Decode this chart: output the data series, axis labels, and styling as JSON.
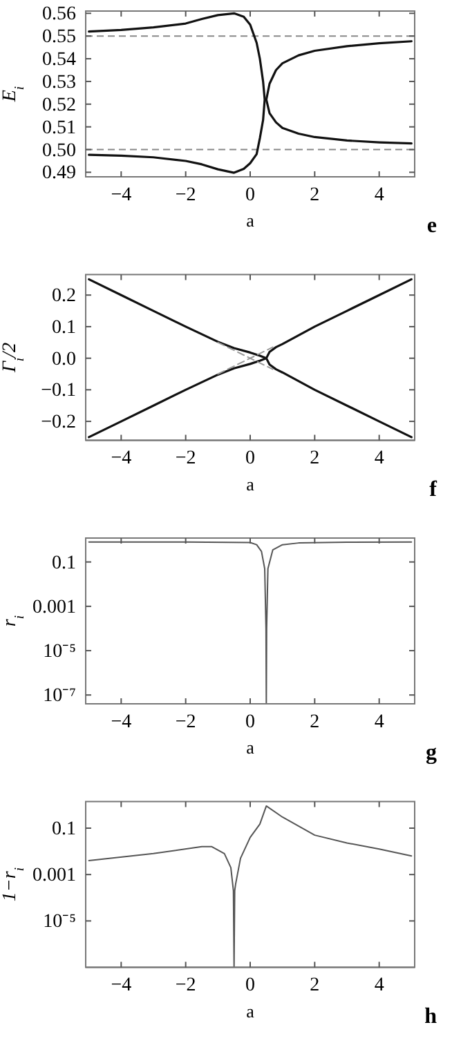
{
  "chart_data": [
    {
      "type": "line",
      "xlabel": "a",
      "ylabel": "E$_{i}$",
      "annotations": [
        "e"
      ],
      "xlim": [
        -5.1,
        5.1
      ],
      "ylim": [
        0.488,
        0.561
      ],
      "xticks": [
        -4,
        -2,
        0,
        2,
        4
      ],
      "yticks": [
        0.49,
        {
          "value": 0.5,
          "label": "0.50"
        },
        0.51,
        0.52,
        0.53,
        0.54,
        0.55,
        0.56
      ],
      "ref_lines": [
        {
          "axis": "y",
          "value": 0.55,
          "color": "#888888",
          "line_style": "dashed"
        },
        {
          "axis": "y",
          "value": 0.5,
          "color": "#888888",
          "line_style": "dashed"
        }
      ],
      "series": [
        {
          "color": "#111111",
          "x": [
            -5,
            -4,
            -3,
            -2,
            -1.5,
            -1,
            -0.5,
            -0.2,
            0,
            0.2,
            0.3,
            0.4,
            0.45,
            0.4,
            0.3,
            0.2,
            0,
            -0.2,
            -0.5,
            -1,
            -1.5,
            -2,
            -3,
            -4,
            -5
          ],
          "values": [
            0.552,
            0.5527,
            0.5538,
            0.5555,
            0.5575,
            0.5592,
            0.56,
            0.5585,
            0.555,
            0.547,
            0.54,
            0.53,
            0.522,
            0.513,
            0.505,
            0.498,
            0.494,
            0.4915,
            0.4898,
            0.4913,
            0.4935,
            0.495,
            0.4966,
            0.4973,
            0.4977
          ]
        },
        {
          "color": "#111111",
          "x": [
            5,
            4,
            3,
            2,
            1.5,
            1,
            0.8,
            0.6,
            0.5,
            0.6,
            0.8,
            1,
            1.5,
            2,
            3,
            4,
            5
          ],
          "values": [
            0.5477,
            0.5468,
            0.5455,
            0.5435,
            0.5415,
            0.538,
            0.535,
            0.529,
            0.522,
            0.516,
            0.512,
            0.5095,
            0.507,
            0.5055,
            0.504,
            0.5032,
            0.5027
          ]
        }
      ]
    },
    {
      "type": "line",
      "xlabel": "a",
      "ylabel": "Γ$_{i}$/2",
      "annotations": [
        "f"
      ],
      "xlim": [
        -5.1,
        5.1
      ],
      "ylim": [
        -0.26,
        0.265
      ],
      "xticks": [
        -4,
        -2,
        0,
        2,
        4
      ],
      "yticks": [
        -0.2,
        -0.1,
        {
          "value": 0,
          "label": "0.0"
        },
        0.1,
        0.2
      ],
      "series": [
        {
          "color": "#111111",
          "x": [
            -5,
            -4,
            -3,
            -2,
            -1,
            -0.5,
            0,
            0.3,
            0.45,
            0.5,
            0.6,
            0.8,
            1,
            2,
            3,
            4,
            5
          ],
          "values": [
            0.25,
            0.2,
            0.15,
            0.1,
            0.052,
            0.032,
            0.018,
            0.008,
            0.002,
            0,
            -0.02,
            -0.035,
            -0.045,
            -0.1,
            -0.15,
            -0.2,
            -0.25
          ]
        },
        {
          "color": "#111111",
          "x": [
            -5,
            -4,
            -3,
            -2,
            -1,
            -0.5,
            0,
            0.3,
            0.45,
            0.5,
            0.6,
            0.8,
            1,
            2,
            3,
            4,
            5
          ],
          "values": [
            -0.25,
            -0.2,
            -0.15,
            -0.1,
            -0.052,
            -0.032,
            -0.018,
            -0.008,
            -0.002,
            0,
            0.02,
            0.035,
            0.045,
            0.1,
            0.15,
            0.2,
            0.25
          ]
        },
        {
          "color": "#999999",
          "line_style": "dashed",
          "x": [
            -1,
            0.7
          ],
          "values": [
            0.05,
            -0.035
          ]
        },
        {
          "color": "#999999",
          "line_style": "dashed",
          "x": [
            -1,
            0.7
          ],
          "values": [
            -0.05,
            0.035
          ]
        }
      ]
    },
    {
      "type": "line",
      "log": "y",
      "xlabel": "a",
      "ylabel": "r$_{i}$",
      "annotations": [
        "g"
      ],
      "xlim": [
        -5.1,
        5.1
      ],
      "ylim": [
        4e-08,
        1.2
      ],
      "xticks": [
        -4,
        -2,
        0,
        2,
        4
      ],
      "yticks": [
        {
          "value": 1e-07,
          "label": "10⁻⁷"
        },
        {
          "value": 1e-05,
          "label": "10⁻⁵"
        },
        0.001,
        0.1
      ],
      "series": [
        {
          "color": "#555555",
          "x": [
            -5,
            -2,
            0,
            0.2,
            0.35,
            0.45,
            0.49,
            0.5,
            0.51,
            0.55,
            0.7,
            1,
            1.5,
            3,
            5
          ],
          "values": [
            0.8,
            0.8,
            0.75,
            0.6,
            0.3,
            0.05,
            0.0001,
            4e-08,
            0.0001,
            0.05,
            0.35,
            0.6,
            0.72,
            0.78,
            0.8
          ]
        }
      ]
    },
    {
      "type": "line",
      "log": "y",
      "xlabel": "a",
      "ylabel": "1−r$_{i}$",
      "annotations": [
        "h"
      ],
      "xlim": [
        -5.1,
        5.1
      ],
      "ylim": [
        1e-07,
        1.4
      ],
      "xticks": [
        -4,
        -2,
        0,
        2,
        4
      ],
      "yticks": [
        {
          "value": 1e-05,
          "label": "10⁻⁵"
        },
        0.001,
        0.1
      ],
      "series": [
        {
          "color": "#555555",
          "x": [
            -5,
            -3,
            -1.5,
            -1.2,
            -0.8,
            -0.6,
            -0.52,
            -0.5,
            -0.48,
            -0.45,
            -0.3,
            0,
            0.3,
            0.5,
            1,
            2,
            3,
            4,
            5
          ],
          "values": [
            0.004,
            0.008,
            0.016,
            0.016,
            0.008,
            0.002,
            0.0002,
            1e-07,
            0.0002,
            0.0004,
            0.005,
            0.04,
            0.15,
            0.9,
            0.3,
            0.05,
            0.023,
            0.0125,
            0.0063
          ]
        }
      ]
    }
  ]
}
